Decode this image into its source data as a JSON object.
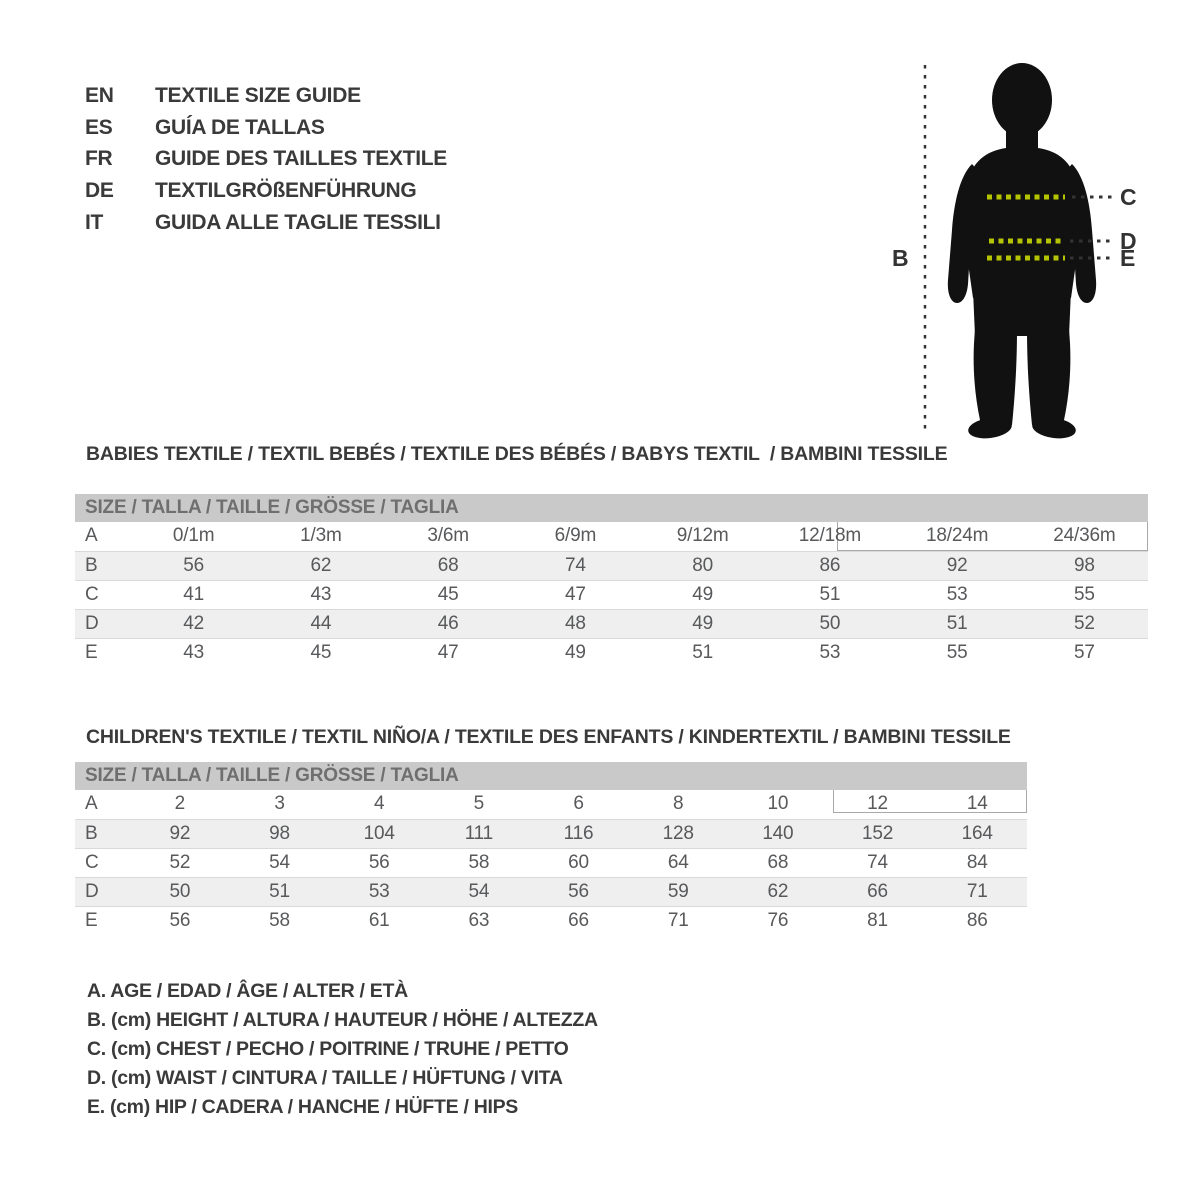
{
  "languages": [
    {
      "code": "EN",
      "title": "TEXTILE SIZE GUIDE"
    },
    {
      "code": "ES",
      "title": "GUÍA DE TALLAS"
    },
    {
      "code": "FR",
      "title": "GUIDE DES TAILLES TEXTILE"
    },
    {
      "code": "DE",
      "title": "TEXTILGRÖßENFÜHRUNG"
    },
    {
      "code": "IT",
      "title": "GUIDA ALLE TAGLIE TESSILI"
    }
  ],
  "figure": {
    "height_label": "B",
    "chest_label": "C",
    "waist_label": "D",
    "hip_label": "E"
  },
  "babies_table": {
    "section_title": "BABIES TEXTILE / TEXTIL BEBÉS / TEXTILE DES BÉBÉS / BABYS TEXTIL  / BAMBINI TESSILE",
    "header": "SIZE / TALLA / TAILLE / GRÖSSE / TAGLIA",
    "rows": [
      {
        "label": "A",
        "values": [
          "0/1m",
          "1/3m",
          "3/6m",
          "6/9m",
          "9/12m",
          "12/18m",
          "18/24m",
          "24/36m"
        ]
      },
      {
        "label": "B",
        "values": [
          "56",
          "62",
          "68",
          "74",
          "80",
          "86",
          "92",
          "98"
        ]
      },
      {
        "label": "C",
        "values": [
          "41",
          "43",
          "45",
          "47",
          "49",
          "51",
          "53",
          "55"
        ]
      },
      {
        "label": "D",
        "values": [
          "42",
          "44",
          "46",
          "48",
          "49",
          "50",
          "51",
          "52"
        ]
      },
      {
        "label": "E",
        "values": [
          "43",
          "45",
          "47",
          "49",
          "51",
          "53",
          "55",
          "57"
        ]
      }
    ]
  },
  "children_table": {
    "section_title": "CHILDREN'S TEXTILE / TEXTIL NIÑO/A / TEXTILE DES ENFANTS / KINDERTEXTIL / BAMBINI TESSILE",
    "header": "SIZE / TALLA / TAILLE / GRÖSSE / TAGLIA",
    "rows": [
      {
        "label": "A",
        "values": [
          "2",
          "3",
          "4",
          "5",
          "6",
          "8",
          "10",
          "12",
          "14"
        ]
      },
      {
        "label": "B",
        "values": [
          "92",
          "98",
          "104",
          "111",
          "116",
          "128",
          "140",
          "152",
          "164"
        ]
      },
      {
        "label": "C",
        "values": [
          "52",
          "54",
          "56",
          "58",
          "60",
          "64",
          "68",
          "74",
          "84"
        ]
      },
      {
        "label": "D",
        "values": [
          "50",
          "51",
          "53",
          "54",
          "56",
          "59",
          "62",
          "66",
          "71"
        ]
      },
      {
        "label": "E",
        "values": [
          "56",
          "58",
          "61",
          "63",
          "66",
          "71",
          "76",
          "81",
          "86"
        ]
      }
    ]
  },
  "legend": [
    "A. AGE / EDAD / ÂGE / ALTER / ETÀ",
    "B. (cm) HEIGHT / ALTURA / HAUTEUR / HÖHE / ALTEZZA",
    "C. (cm) CHEST / PECHO / POITRINE / TRUHE / PETTO",
    "D. (cm) WAIST / CINTURA / TAILLE / HÜFTUNG / VITA",
    "E. (cm) HIP / CADERA / HANCHE / HÜFTE / HIPS"
  ],
  "colors": {
    "text": "#3a3a3a",
    "table-text": "#58595b",
    "header-bg": "#c9c9c9",
    "header-text": "#6f6f6f",
    "stripe": "#efefef",
    "sil": "#111111",
    "accent": "#b5c400",
    "guide": "#333333"
  }
}
